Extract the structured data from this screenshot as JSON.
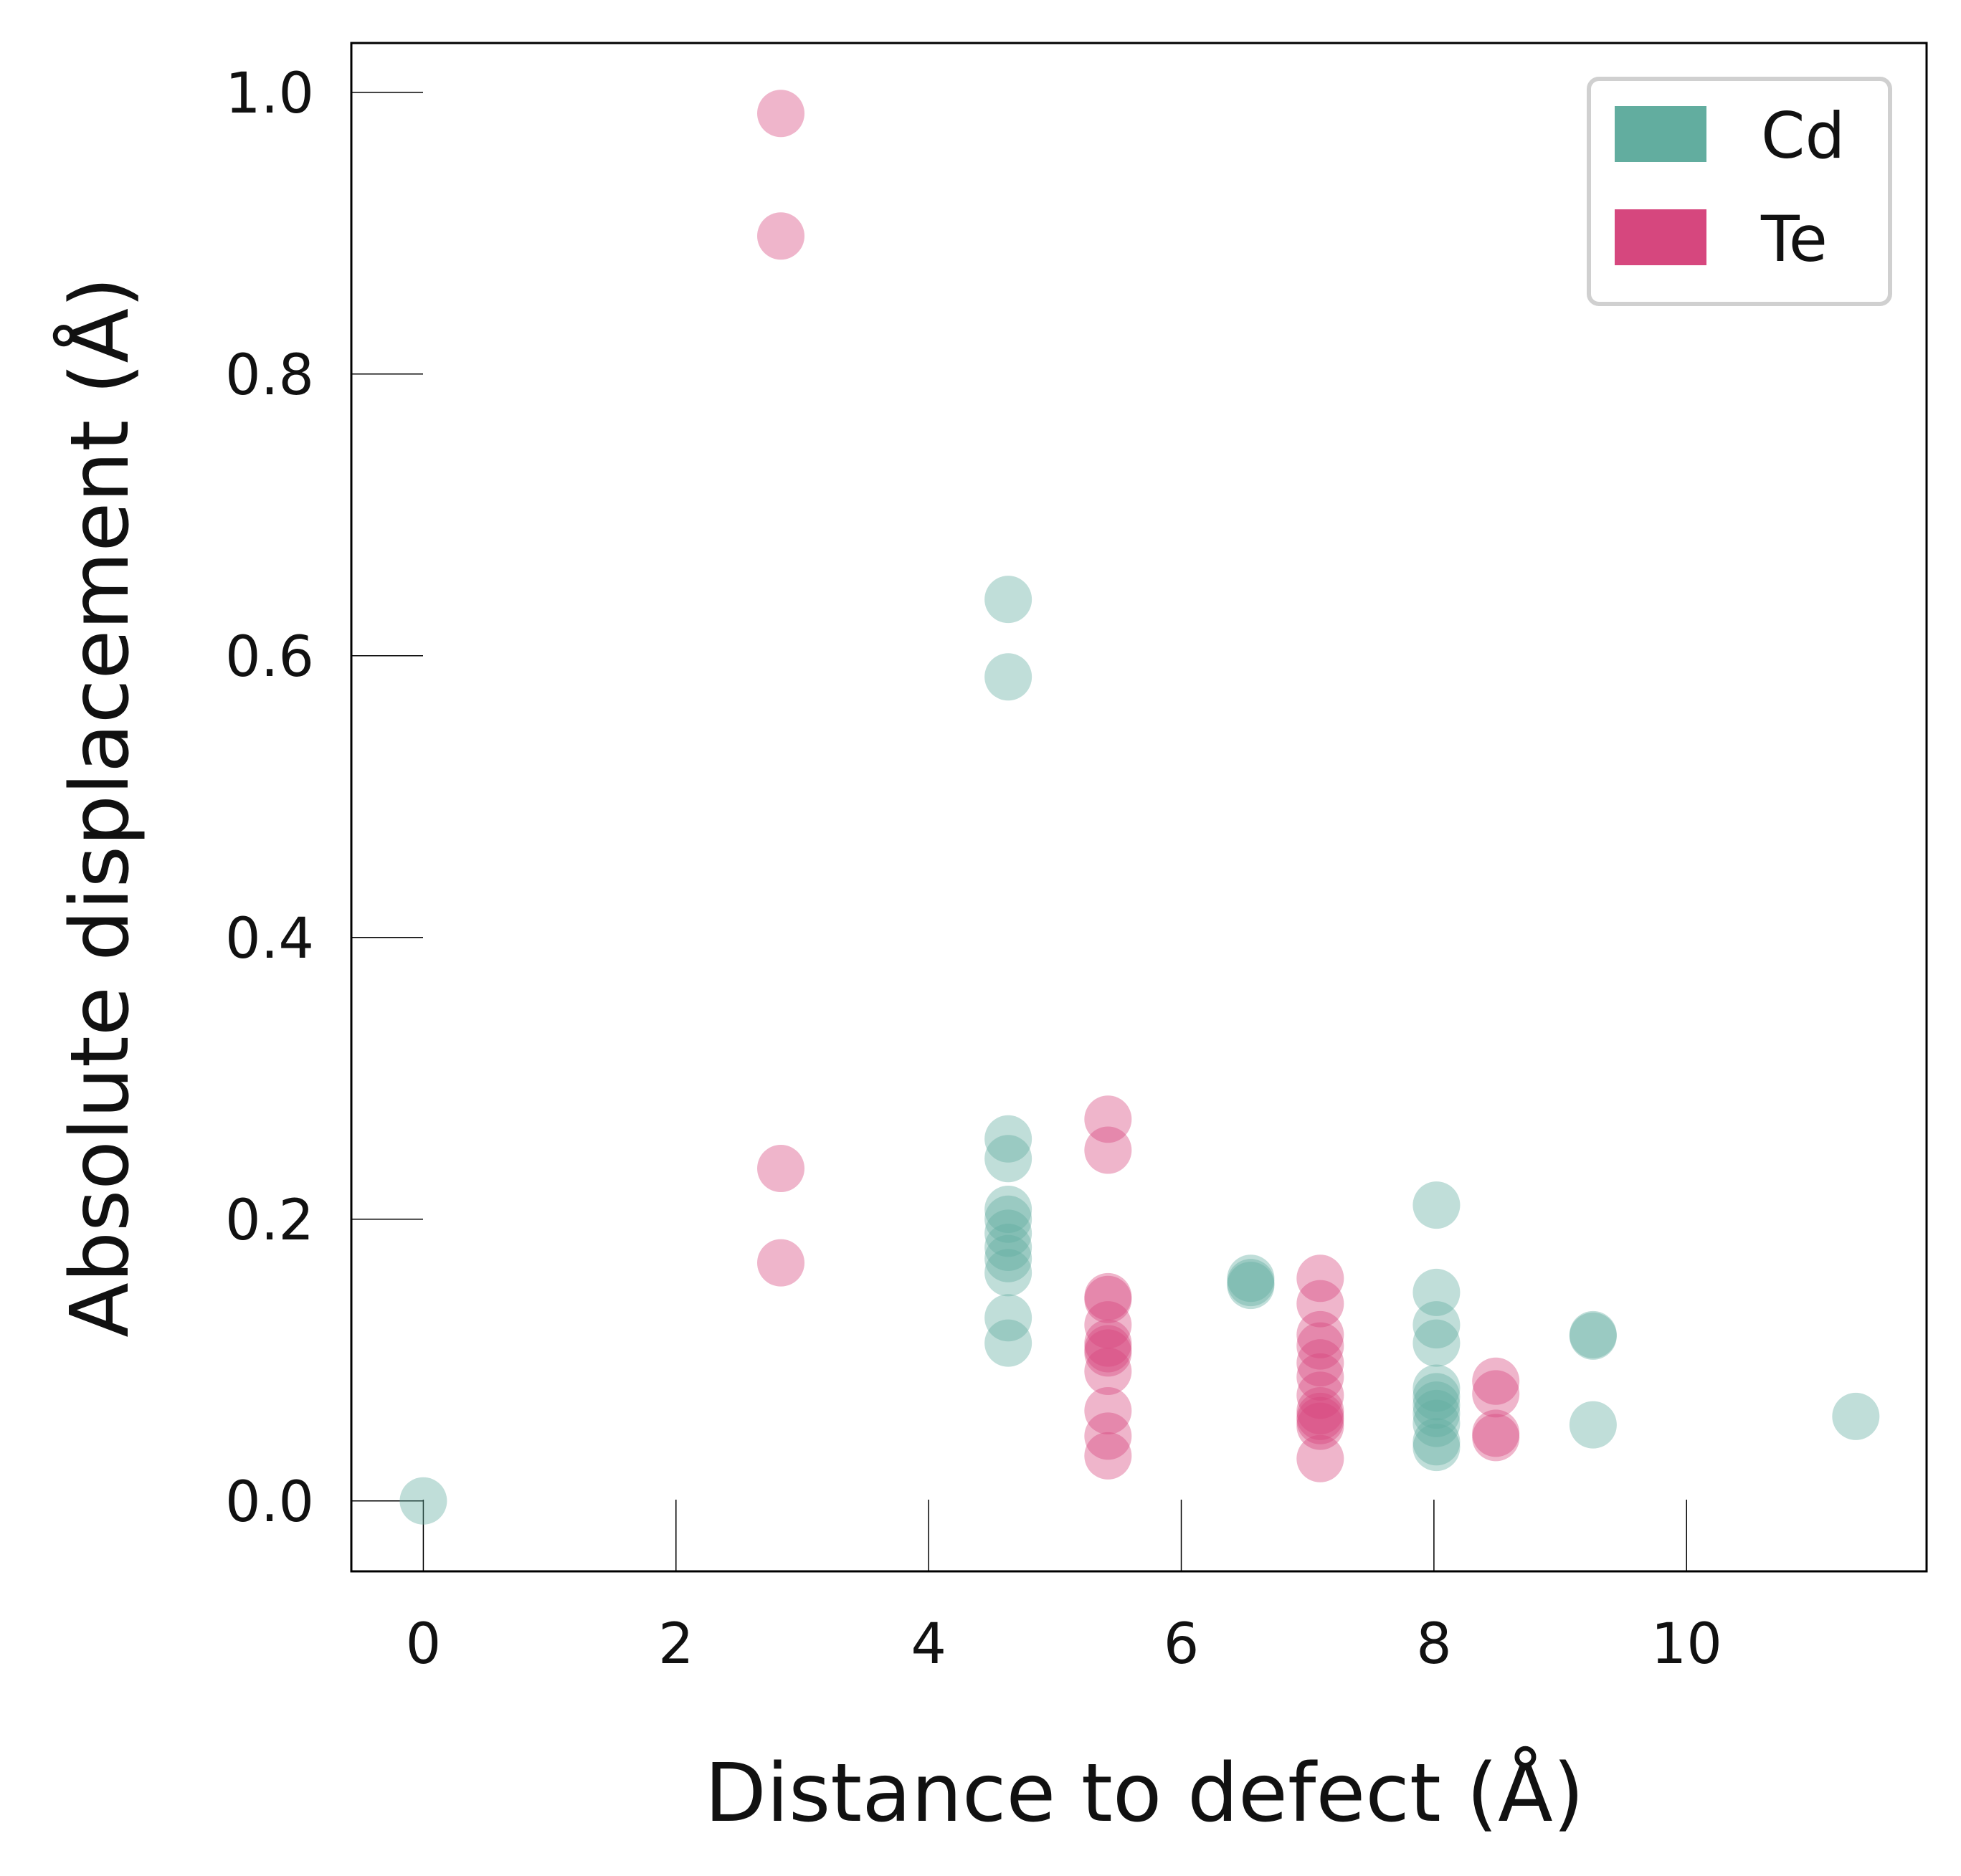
{
  "chart_data": {
    "type": "scatter",
    "xlabel": "Distance to defect (Å)",
    "ylabel": "Absolute displacement (Å)",
    "xlim": [
      -0.57,
      11.9
    ],
    "ylim": [
      -0.05,
      1.035
    ],
    "xticks": [
      "0",
      "2",
      "4",
      "6",
      "8",
      "10"
    ],
    "xtick_values": [
      0,
      2,
      4,
      6,
      8,
      10
    ],
    "yticks": [
      "0.0",
      "0.2",
      "0.4",
      "0.6",
      "0.8",
      "1.0"
    ],
    "ytick_values": [
      0.0,
      0.2,
      0.4,
      0.6,
      0.8,
      1.0
    ],
    "grid": false,
    "legend_position": "top-right",
    "series": [
      {
        "name": "Cd",
        "color": "#62ad9f",
        "points": [
          [
            0.0,
            0.0
          ],
          [
            4.63,
            0.64
          ],
          [
            4.63,
            0.585
          ],
          [
            4.63,
            0.257
          ],
          [
            4.63,
            0.243
          ],
          [
            4.63,
            0.207
          ],
          [
            4.63,
            0.2
          ],
          [
            4.63,
            0.19
          ],
          [
            4.63,
            0.18
          ],
          [
            4.63,
            0.172
          ],
          [
            4.63,
            0.162
          ],
          [
            4.63,
            0.13
          ],
          [
            4.63,
            0.112
          ],
          [
            6.55,
            0.158
          ],
          [
            6.55,
            0.155
          ],
          [
            6.55,
            0.153
          ],
          [
            8.02,
            0.21
          ],
          [
            8.02,
            0.148
          ],
          [
            8.02,
            0.125
          ],
          [
            8.02,
            0.112
          ],
          [
            8.02,
            0.08
          ],
          [
            8.02,
            0.074
          ],
          [
            8.02,
            0.068
          ],
          [
            8.02,
            0.062
          ],
          [
            8.02,
            0.055
          ],
          [
            8.02,
            0.042
          ],
          [
            8.02,
            0.038
          ],
          [
            9.26,
            0.118
          ],
          [
            9.26,
            0.117
          ],
          [
            9.26,
            0.054
          ],
          [
            11.34,
            0.06
          ]
        ]
      },
      {
        "name": "Te",
        "color": "#d6477e",
        "points": [
          [
            2.83,
            0.985
          ],
          [
            2.83,
            0.898
          ],
          [
            2.83,
            0.236
          ],
          [
            2.83,
            0.169
          ],
          [
            5.42,
            0.271
          ],
          [
            5.42,
            0.249
          ],
          [
            5.42,
            0.145
          ],
          [
            5.42,
            0.143
          ],
          [
            5.42,
            0.125
          ],
          [
            5.42,
            0.112
          ],
          [
            5.42,
            0.108
          ],
          [
            5.42,
            0.105
          ],
          [
            5.42,
            0.092
          ],
          [
            5.42,
            0.064
          ],
          [
            5.42,
            0.046
          ],
          [
            5.42,
            0.032
          ],
          [
            7.1,
            0.158
          ],
          [
            7.1,
            0.14
          ],
          [
            7.1,
            0.118
          ],
          [
            7.1,
            0.11
          ],
          [
            7.1,
            0.098
          ],
          [
            7.1,
            0.088
          ],
          [
            7.1,
            0.075
          ],
          [
            7.1,
            0.064
          ],
          [
            7.1,
            0.06
          ],
          [
            7.1,
            0.057
          ],
          [
            7.1,
            0.053
          ],
          [
            7.1,
            0.03
          ],
          [
            8.49,
            0.085
          ],
          [
            8.49,
            0.076
          ],
          [
            8.49,
            0.048
          ],
          [
            8.49,
            0.045
          ]
        ]
      }
    ]
  }
}
